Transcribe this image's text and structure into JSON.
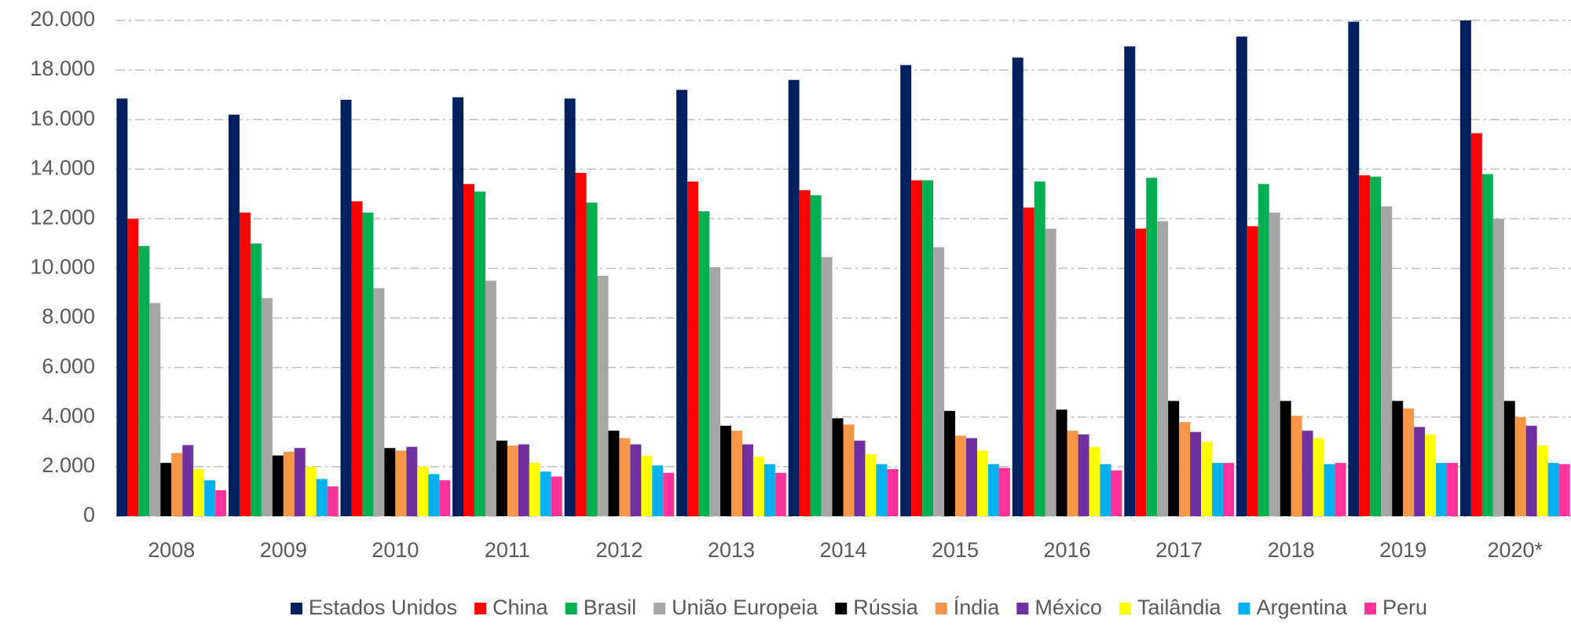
{
  "chart_data": {
    "type": "bar",
    "categories": [
      "2008",
      "2009",
      "2010",
      "2011",
      "2012",
      "2013",
      "2014",
      "2015",
      "2016",
      "2017",
      "2018",
      "2019",
      "2020*"
    ],
    "series": [
      {
        "name": "Estados Unidos",
        "color": "#002060",
        "values": [
          16850,
          16200,
          16800,
          16900,
          16850,
          17200,
          17600,
          18200,
          18500,
          18950,
          19350,
          19950,
          20000
        ]
      },
      {
        "name": "China",
        "color": "#ff0000",
        "values": [
          12000,
          12250,
          12700,
          13400,
          13850,
          13500,
          13150,
          13550,
          12450,
          11600,
          11700,
          13750,
          15450
        ]
      },
      {
        "name": "Brasil",
        "color": "#00b050",
        "values": [
          10900,
          11000,
          12250,
          13100,
          12650,
          12300,
          12950,
          13550,
          13500,
          13650,
          13400,
          13700,
          13800
        ]
      },
      {
        "name": "União Europeia",
        "color": "#a6a6a6",
        "values": [
          8600,
          8800,
          9200,
          9500,
          9700,
          10050,
          10450,
          10850,
          11600,
          11900,
          12250,
          12500,
          12000
        ]
      },
      {
        "name": "Rússia",
        "color": "#000000",
        "values": [
          2150,
          2450,
          2750,
          3050,
          3450,
          3650,
          3950,
          4250,
          4300,
          4650,
          4650,
          4650,
          4650
        ]
      },
      {
        "name": "Índia",
        "color": "#f79646",
        "values": [
          2550,
          2600,
          2650,
          2850,
          3150,
          3450,
          3700,
          3250,
          3450,
          3800,
          4050,
          4350,
          4000
        ]
      },
      {
        "name": "México",
        "color": "#7030a0",
        "values": [
          2870,
          2750,
          2800,
          2900,
          2900,
          2900,
          3050,
          3150,
          3300,
          3400,
          3450,
          3600,
          3650
        ]
      },
      {
        "name": "Tailândia",
        "color": "#ffff00",
        "values": [
          1900,
          2000,
          2000,
          2150,
          2450,
          2400,
          2500,
          2650,
          2800,
          3000,
          3150,
          3300,
          2850
        ]
      },
      {
        "name": "Argentina",
        "color": "#00b0f0",
        "values": [
          1450,
          1500,
          1700,
          1800,
          2050,
          2100,
          2100,
          2100,
          2100,
          2150,
          2100,
          2150,
          2150
        ]
      },
      {
        "name": "Peru",
        "color": "#ff3399",
        "values": [
          1050,
          1200,
          1450,
          1600,
          1750,
          1750,
          1900,
          1950,
          1850,
          2150,
          2150,
          2150,
          2100
        ]
      }
    ],
    "ylim": [
      0,
      20000
    ],
    "yticks": [
      0,
      {
        "value": 2000,
        "label": "2.000"
      },
      {
        "value": 4000,
        "label": "4.000"
      },
      {
        "value": 6000,
        "label": "6.000"
      },
      {
        "value": 8000,
        "label": "8.000"
      },
      {
        "value": 10000,
        "label": "10.000"
      },
      {
        "value": 12000,
        "label": "12.000"
      },
      {
        "value": 14000,
        "label": "14.000"
      },
      {
        "value": 16000,
        "label": "16.000"
      },
      {
        "value": 18000,
        "label": "18.000"
      },
      {
        "value": 20000,
        "label": "20.000"
      }
    ],
    "grid": true,
    "legend": "bottom"
  }
}
